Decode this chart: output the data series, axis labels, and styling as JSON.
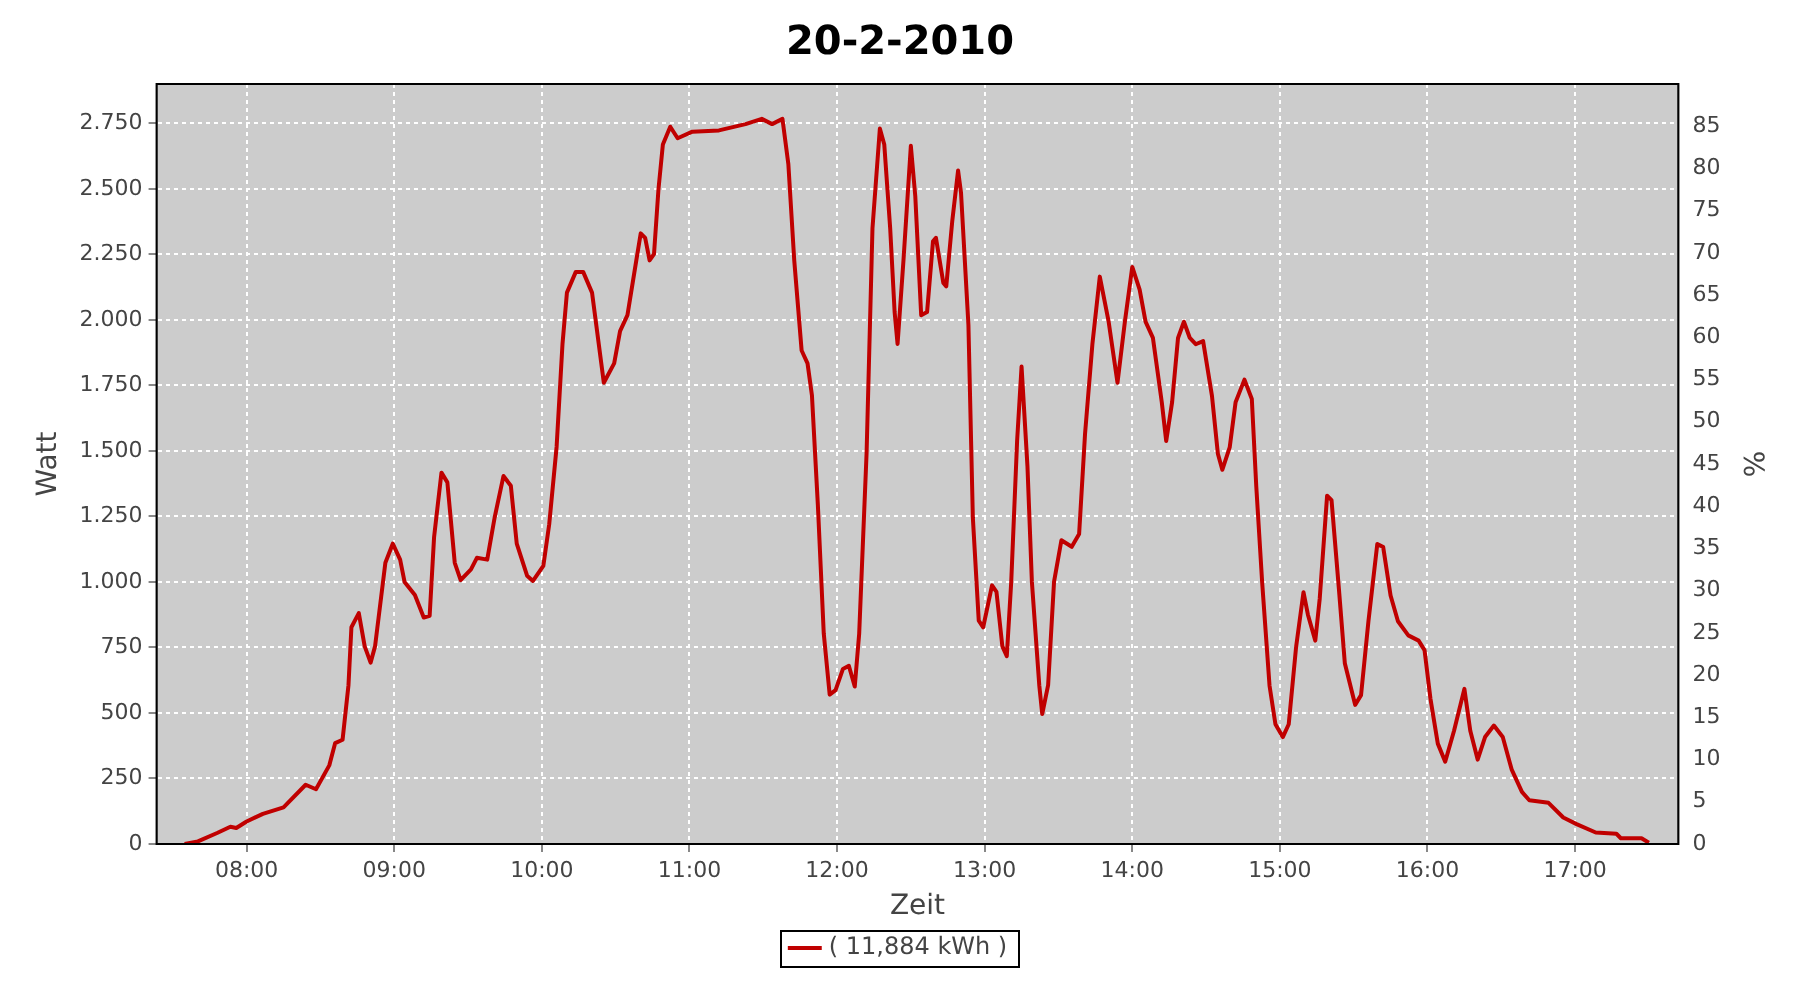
{
  "chart_data": {
    "type": "line",
    "title": "20-2-2010",
    "xlabel": "Zeit",
    "ylabel": "Watt",
    "y2label": "%",
    "xlim": [
      7.39,
      17.7
    ],
    "xticks": [
      {
        "value": 8,
        "label": "08:00"
      },
      {
        "value": 9,
        "label": "09:00"
      },
      {
        "value": 10,
        "label": "10:00"
      },
      {
        "value": 11,
        "label": "11:00"
      },
      {
        "value": 12,
        "label": "12:00"
      },
      {
        "value": 13,
        "label": "13:00"
      },
      {
        "value": 14,
        "label": "14:00"
      },
      {
        "value": 15,
        "label": "15:00"
      },
      {
        "value": 16,
        "label": "16:00"
      },
      {
        "value": 17,
        "label": "17:00"
      }
    ],
    "ylim": [
      0,
      2900
    ],
    "yticks": [
      0,
      250,
      500,
      750,
      {
        "value": 1000,
        "label": "1.000"
      },
      {
        "value": 1250,
        "label": "1.250"
      },
      {
        "value": 1500,
        "label": "1.500"
      },
      {
        "value": 1750,
        "label": "1.750"
      },
      {
        "value": 2000,
        "label": "2.000"
      },
      {
        "value": 2250,
        "label": "2.250"
      },
      {
        "value": 2500,
        "label": "2.500"
      },
      {
        "value": 2750,
        "label": "2.750"
      }
    ],
    "y2lim": [
      0,
      90
    ],
    "y2ticks": [
      0,
      5,
      10,
      15,
      20,
      25,
      30,
      35,
      40,
      45,
      50,
      55,
      60,
      65,
      70,
      75,
      80,
      85
    ],
    "grid": true,
    "legend": "bottom",
    "marker": "none",
    "line_style": "solid",
    "series": [
      {
        "name": "( 11,884 kWh )",
        "color": "#c00000",
        "x": [
          7.58,
          7.67,
          7.8,
          7.89,
          7.93,
          8.0,
          8.11,
          8.25,
          8.4,
          8.47,
          8.56,
          8.6,
          8.65,
          8.69,
          8.71,
          8.76,
          8.8,
          8.84,
          8.87,
          8.94,
          8.99,
          9.04,
          9.07,
          9.14,
          9.2,
          9.24,
          9.27,
          9.32,
          9.36,
          9.41,
          9.45,
          9.52,
          9.56,
          9.63,
          9.68,
          9.74,
          9.79,
          9.83,
          9.9,
          9.94,
          10.01,
          10.05,
          10.1,
          10.14,
          10.17,
          10.23,
          10.28,
          10.34,
          10.42,
          10.49,
          10.53,
          10.58,
          10.64,
          10.67,
          10.7,
          10.73,
          10.76,
          10.79,
          10.82,
          10.87,
          10.92,
          11.02,
          11.2,
          11.38,
          11.49,
          11.56,
          11.63,
          11.67,
          11.71,
          11.76,
          11.8,
          11.83,
          11.87,
          11.91,
          11.95,
          11.99,
          12.04,
          12.08,
          12.12,
          12.15,
          12.2,
          12.24,
          12.29,
          12.32,
          12.36,
          12.39,
          12.41,
          12.45,
          12.5,
          12.53,
          12.57,
          12.61,
          12.65,
          12.67,
          12.72,
          12.74,
          12.78,
          12.82,
          12.84,
          12.89,
          12.92,
          12.96,
          12.99,
          13.05,
          13.08,
          13.12,
          13.15,
          13.18,
          13.22,
          13.25,
          13.29,
          13.32,
          13.37,
          13.39,
          13.43,
          13.47,
          13.52,
          13.59,
          13.64,
          13.68,
          13.73,
          13.78,
          13.84,
          13.9,
          13.95,
          14.0,
          14.05,
          14.09,
          14.14,
          14.2,
          14.23,
          14.27,
          14.31,
          14.35,
          14.39,
          14.43,
          14.48,
          14.54,
          14.58,
          14.61,
          14.66,
          14.7,
          14.76,
          14.81,
          14.84,
          14.88,
          14.93,
          14.97,
          15.02,
          15.06,
          15.11,
          15.16,
          15.19,
          15.24,
          15.27,
          15.32,
          15.35,
          15.4,
          15.44,
          15.51,
          15.55,
          15.6,
          15.66,
          15.7,
          15.75,
          15.8,
          15.87,
          15.94,
          15.98,
          16.02,
          16.07,
          16.12,
          16.18,
          16.25,
          16.29,
          16.34,
          16.39,
          16.45,
          16.51,
          16.57,
          16.64,
          16.69,
          16.82,
          16.92,
          17.01,
          17.14,
          17.28,
          17.31,
          17.45,
          17.5
        ],
        "values": [
          0,
          10,
          42,
          66,
          61,
          86,
          115,
          140,
          226,
          209,
          300,
          385,
          398,
          606,
          827,
          881,
          754,
          692,
          754,
          1073,
          1146,
          1085,
          1000,
          950,
          864,
          871,
          1171,
          1417,
          1380,
          1073,
          1007,
          1048,
          1092,
          1085,
          1245,
          1404,
          1367,
          1146,
          1024,
          1004,
          1061,
          1220,
          1515,
          1908,
          2104,
          2183,
          2183,
          2104,
          1760,
          1834,
          1957,
          2018,
          2227,
          2330,
          2313,
          2227,
          2251,
          2497,
          2669,
          2737,
          2693,
          2718,
          2723,
          2747,
          2767,
          2747,
          2767,
          2595,
          2227,
          1883,
          1834,
          1711,
          1294,
          803,
          570,
          587,
          668,
          680,
          601,
          803,
          1490,
          2349,
          2730,
          2669,
          2349,
          2030,
          1908,
          2227,
          2664,
          2472,
          2018,
          2030,
          2300,
          2313,
          2141,
          2128,
          2374,
          2570,
          2484,
          1981,
          1245,
          852,
          827,
          987,
          962,
          754,
          717,
          1000,
          1539,
          1822,
          1441,
          1000,
          606,
          496,
          606,
          1000,
          1159,
          1134,
          1183,
          1564,
          1908,
          2165,
          1993,
          1760,
          1993,
          2202,
          2115,
          1993,
          1931,
          1686,
          1538,
          1686,
          1931,
          1993,
          1931,
          1907,
          1919,
          1710,
          1489,
          1428,
          1513,
          1686,
          1772,
          1698,
          1366,
          998,
          604,
          457,
          408,
          457,
          752,
          961,
          875,
          776,
          936,
          1329,
          1312,
          973,
          690,
          531,
          568,
          850,
          1145,
          1133,
          948,
          850,
          796,
          776,
          740,
          555,
          383,
          314,
          432,
          592,
          432,
          322,
          408,
          452,
          408,
          285,
          199,
          167,
          157,
          101,
          76,
          44,
          39,
          22,
          22,
          5
        ]
      }
    ]
  }
}
